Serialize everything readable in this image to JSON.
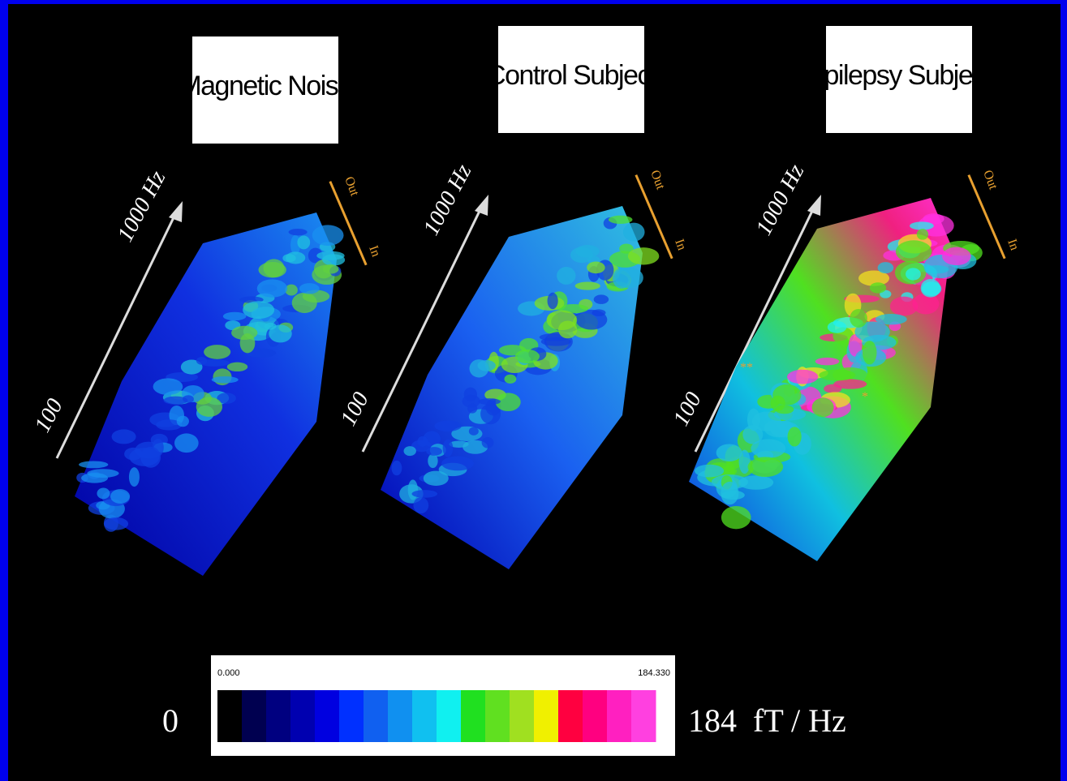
{
  "panels": [
    {
      "title": "Magnetic Noise",
      "axis_high": "1000 Hz",
      "axis_low": "100",
      "out_label": "Out",
      "in_label": "In"
    },
    {
      "title": "Control Subject",
      "axis_high": "1000 Hz",
      "axis_low": "100",
      "out_label": "Out",
      "in_label": "In"
    },
    {
      "title": "Epilepsy Subject",
      "axis_high": "1000 Hz",
      "axis_low": "100",
      "out_label": "Out",
      "in_label": "In"
    }
  ],
  "annotations": [
    "**",
    "*"
  ],
  "colorbar": {
    "min_tick": "0.000",
    "max_tick": "184.330",
    "min_label": "0",
    "max_label": "184  fT / Hz"
  }
}
